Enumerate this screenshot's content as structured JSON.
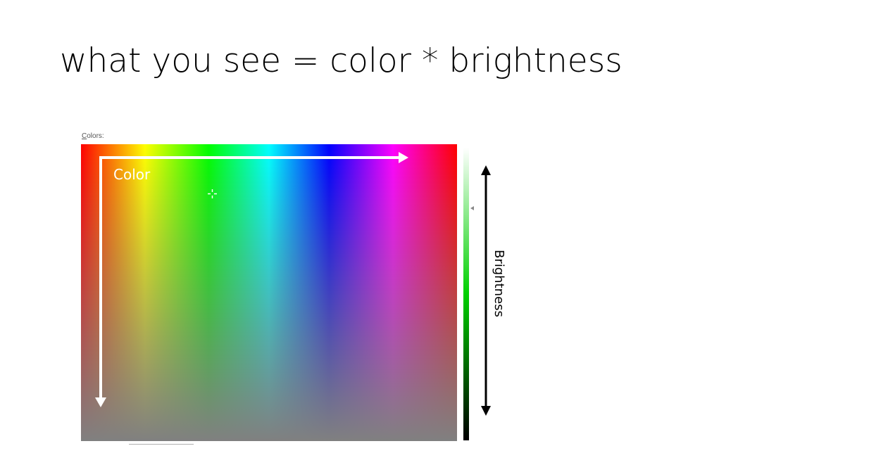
{
  "slide": {
    "title": "what you see = color * brightness"
  },
  "picker": {
    "label_underlined_letter": "C",
    "label_rest": "olors:"
  },
  "annotations": {
    "color_label": "Color",
    "brightness_label": "Brightness"
  },
  "colors": {
    "arrow_color_axis": "#ffffff",
    "arrow_brightness_axis": "#000000"
  },
  "icons": {
    "cursor": "crosshair-icon",
    "luminance_pointer": "triangle-left-icon"
  }
}
